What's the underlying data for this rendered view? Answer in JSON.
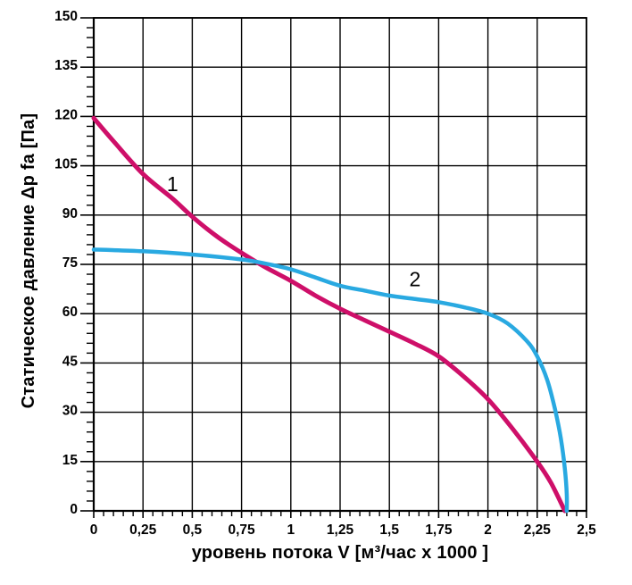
{
  "chart_data": {
    "type": "line",
    "title": "",
    "xlabel": "уровень потока  V [м³/час x 1000 ]",
    "ylabel": "Статическое давление  Δp fa [Па]",
    "xlim": [
      0,
      2.5
    ],
    "ylim": [
      0,
      150
    ],
    "x_major_step": 0.25,
    "x_minor_step": 0.05,
    "y_major_step": 15,
    "y_minor_step": 3,
    "x_tick_labels": [
      "0",
      "0,25",
      "0,5",
      "0,75",
      "1",
      "1,25",
      "1,5",
      "1,75",
      "2",
      "2,25",
      "2,5"
    ],
    "y_tick_labels": [
      "0",
      "15",
      "30",
      "45",
      "60",
      "75",
      "90",
      "105",
      "120",
      "135",
      "150"
    ],
    "grid": true,
    "grid_color": "#000000",
    "legend_position": "inline-curve-labels",
    "series": [
      {
        "name": "1",
        "color": "#CE0F69",
        "label": "1",
        "label_x": 0.4,
        "label_y": 99.5,
        "points": [
          [
            0,
            119.5
          ],
          [
            0.1,
            112.5
          ],
          [
            0.25,
            102.5
          ],
          [
            0.4,
            95
          ],
          [
            0.5,
            89.5
          ],
          [
            0.625,
            83.5
          ],
          [
            0.75,
            78.5
          ],
          [
            0.875,
            74
          ],
          [
            1.0,
            70
          ],
          [
            1.125,
            65.5
          ],
          [
            1.25,
            61.5
          ],
          [
            1.375,
            58
          ],
          [
            1.5,
            54.5
          ],
          [
            1.625,
            51
          ],
          [
            1.75,
            47
          ],
          [
            1.875,
            41
          ],
          [
            2.0,
            34
          ],
          [
            2.125,
            25
          ],
          [
            2.25,
            15
          ],
          [
            2.32,
            8.5
          ],
          [
            2.39,
            0
          ]
        ]
      },
      {
        "name": "2",
        "color": "#29A9E1",
        "label": "2",
        "label_x": 1.63,
        "label_y": 70.5,
        "points": [
          [
            0,
            79.5
          ],
          [
            0.25,
            79
          ],
          [
            0.5,
            78
          ],
          [
            0.75,
            76.5
          ],
          [
            0.875,
            75.2
          ],
          [
            1.0,
            73.5
          ],
          [
            1.125,
            71
          ],
          [
            1.25,
            68.5
          ],
          [
            1.375,
            67
          ],
          [
            1.5,
            65.5
          ],
          [
            1.625,
            64.5
          ],
          [
            1.75,
            63.5
          ],
          [
            1.875,
            62
          ],
          [
            2.0,
            60
          ],
          [
            2.1,
            57
          ],
          [
            2.2,
            51.5
          ],
          [
            2.25,
            47
          ],
          [
            2.3,
            40
          ],
          [
            2.34,
            31
          ],
          [
            2.37,
            22
          ],
          [
            2.39,
            13
          ],
          [
            2.4,
            5
          ],
          [
            2.4,
            0
          ]
        ]
      }
    ]
  },
  "style": {
    "curve1_width": 5,
    "curve2_width": 4.5,
    "tick_label_color": "#000000",
    "background": "#ffffff"
  }
}
